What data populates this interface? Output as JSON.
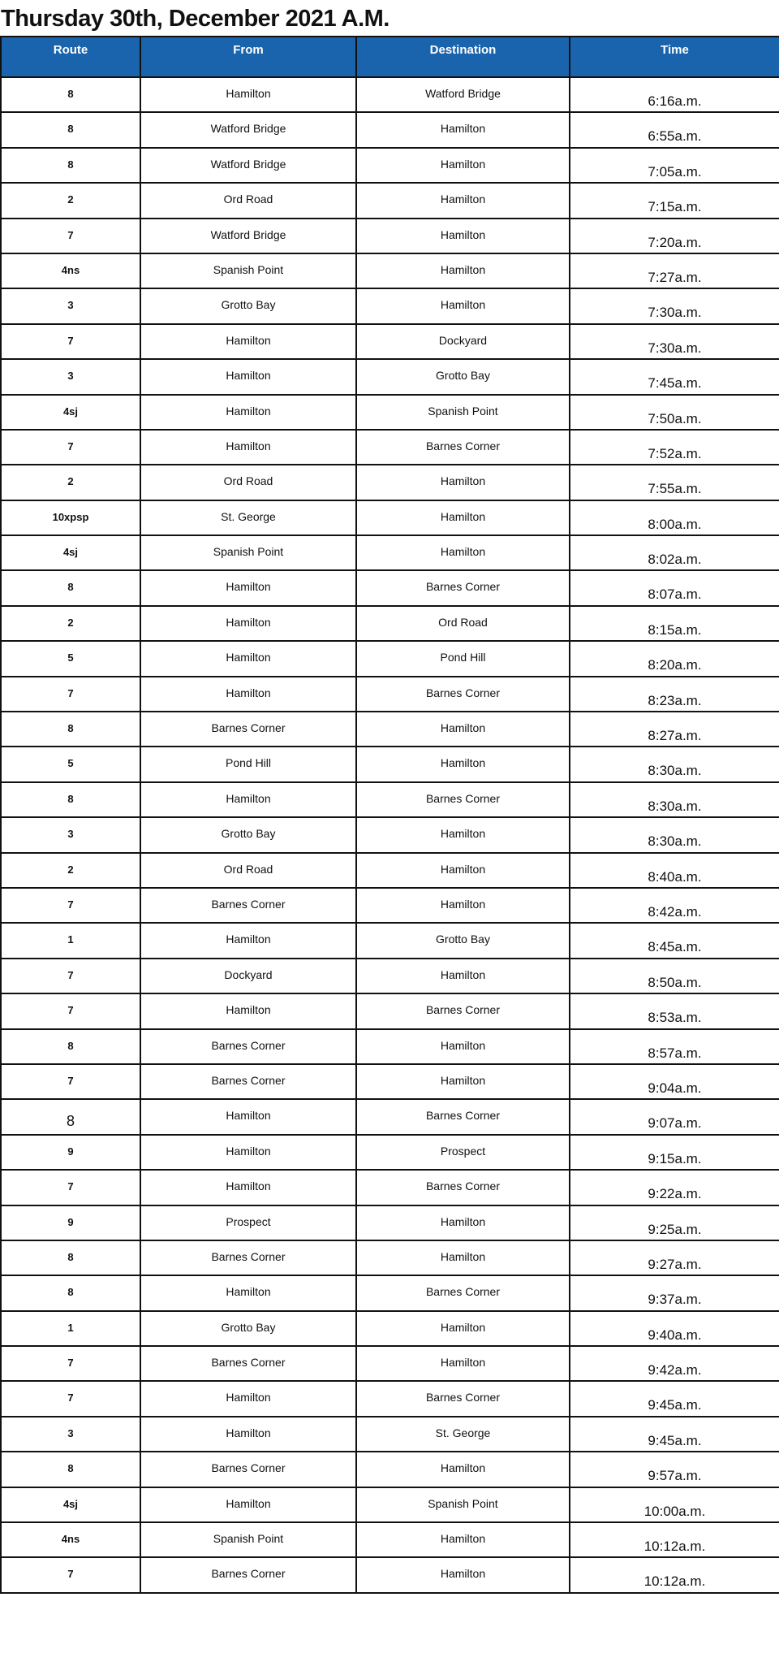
{
  "title": "Thursday 30th, December 2021 A.M.",
  "colors": {
    "header_bg": "#1a64ad"
  },
  "columns": [
    "Route",
    "From",
    "Destination",
    "Time"
  ],
  "rows": [
    [
      "8",
      "Hamilton",
      "Watford Bridge",
      "6:16a.m."
    ],
    [
      "8",
      "Watford Bridge",
      "Hamilton",
      "6:55a.m."
    ],
    [
      "8",
      "Watford Bridge",
      "Hamilton",
      "7:05a.m."
    ],
    [
      "2",
      "Ord Road",
      "Hamilton",
      "7:15a.m."
    ],
    [
      "7",
      "Watford Bridge",
      "Hamilton",
      "7:20a.m."
    ],
    [
      "4ns",
      "Spanish Point",
      "Hamilton",
      "7:27a.m."
    ],
    [
      "3",
      "Grotto Bay",
      "Hamilton",
      "7:30a.m."
    ],
    [
      "7",
      "Hamilton",
      "Dockyard",
      "7:30a.m."
    ],
    [
      "3",
      "Hamilton",
      "Grotto Bay",
      "7:45a.m."
    ],
    [
      "4sj",
      "Hamilton",
      "Spanish Point",
      "7:50a.m."
    ],
    [
      "7",
      "Hamilton",
      "Barnes Corner",
      "7:52a.m."
    ],
    [
      "2",
      "Ord Road",
      "Hamilton",
      "7:55a.m."
    ],
    [
      "10xpsp",
      "St. George",
      "Hamilton",
      "8:00a.m."
    ],
    [
      "4sj",
      "Spanish Point",
      "Hamilton",
      "8:02a.m."
    ],
    [
      "8",
      "Hamilton",
      "Barnes Corner",
      "8:07a.m."
    ],
    [
      "2",
      "Hamilton",
      "Ord Road",
      "8:15a.m."
    ],
    [
      "5",
      "Hamilton",
      "Pond Hill",
      "8:20a.m."
    ],
    [
      "7",
      "Hamilton",
      "Barnes Corner",
      "8:23a.m."
    ],
    [
      "8",
      "Barnes Corner",
      "Hamilton",
      "8:27a.m."
    ],
    [
      "5",
      "Pond Hill",
      "Hamilton",
      "8:30a.m."
    ],
    [
      "8",
      "Hamilton",
      "Barnes Corner",
      "8:30a.m."
    ],
    [
      "3",
      "Grotto Bay",
      "Hamilton",
      "8:30a.m."
    ],
    [
      "2",
      "Ord Road",
      "Hamilton",
      "8:40a.m."
    ],
    [
      "7",
      "Barnes Corner",
      "Hamilton",
      "8:42a.m."
    ],
    [
      "1",
      "Hamilton",
      "Grotto Bay",
      "8:45a.m."
    ],
    [
      "7",
      "Dockyard",
      "Hamilton",
      "8:50a.m."
    ],
    [
      "7",
      "Hamilton",
      "Barnes Corner",
      "8:53a.m."
    ],
    [
      "8",
      "Barnes Corner",
      "Hamilton",
      "8:57a.m."
    ],
    [
      "7",
      "Barnes Corner",
      "Hamilton",
      "9:04a.m."
    ],
    [
      "8",
      "Hamilton",
      "Barnes Corner",
      "9:07a.m."
    ],
    [
      "9",
      "Hamilton",
      "Prospect",
      "9:15a.m."
    ],
    [
      "7",
      "Hamilton",
      "Barnes Corner",
      "9:22a.m."
    ],
    [
      "9",
      "Prospect",
      "Hamilton",
      "9:25a.m."
    ],
    [
      "8",
      "Barnes Corner",
      "Hamilton",
      "9:27a.m."
    ],
    [
      "8",
      "Hamilton",
      "Barnes Corner",
      "9:37a.m."
    ],
    [
      "1",
      "Grotto Bay",
      "Hamilton",
      "9:40a.m."
    ],
    [
      "7",
      "Barnes Corner",
      "Hamilton",
      "9:42a.m."
    ],
    [
      "7",
      "Hamilton",
      "Barnes Corner",
      "9:45a.m."
    ],
    [
      "3",
      "Hamilton",
      "St. George",
      "9:45a.m."
    ],
    [
      "8",
      "Barnes Corner",
      "Hamilton",
      "9:57a.m."
    ],
    [
      "4sj",
      "Hamilton",
      "Spanish Point",
      "10:00a.m."
    ],
    [
      "4ns",
      "Spanish Point",
      "Hamilton",
      "10:12a.m."
    ],
    [
      "7",
      "Barnes Corner",
      "Hamilton",
      "10:12a.m."
    ]
  ]
}
